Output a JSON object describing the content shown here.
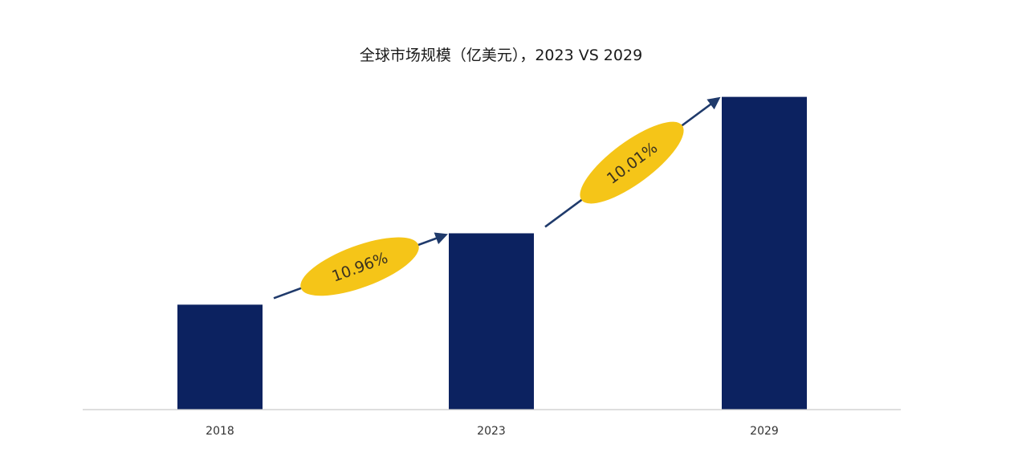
{
  "chart_data": {
    "type": "bar",
    "title": "全球市场规模（亿美元），2023 VS 2029",
    "xlabel": "",
    "ylabel": "",
    "categories": [
      "2018",
      "2023",
      "2029"
    ],
    "values": [
      100,
      168,
      298
    ],
    "ylim": [
      0,
      300
    ],
    "grid": false,
    "legend": "none",
    "bar_color": "#0c2260",
    "axis_color": "#c9c9c9",
    "annotation_color": "#f5c518",
    "arrow_color": "#1f3a6b",
    "annotations": [
      {
        "from": "2018",
        "to": "2023",
        "label": "10.96%"
      },
      {
        "from": "2023",
        "to": "2029",
        "label": "10.01%"
      }
    ]
  }
}
